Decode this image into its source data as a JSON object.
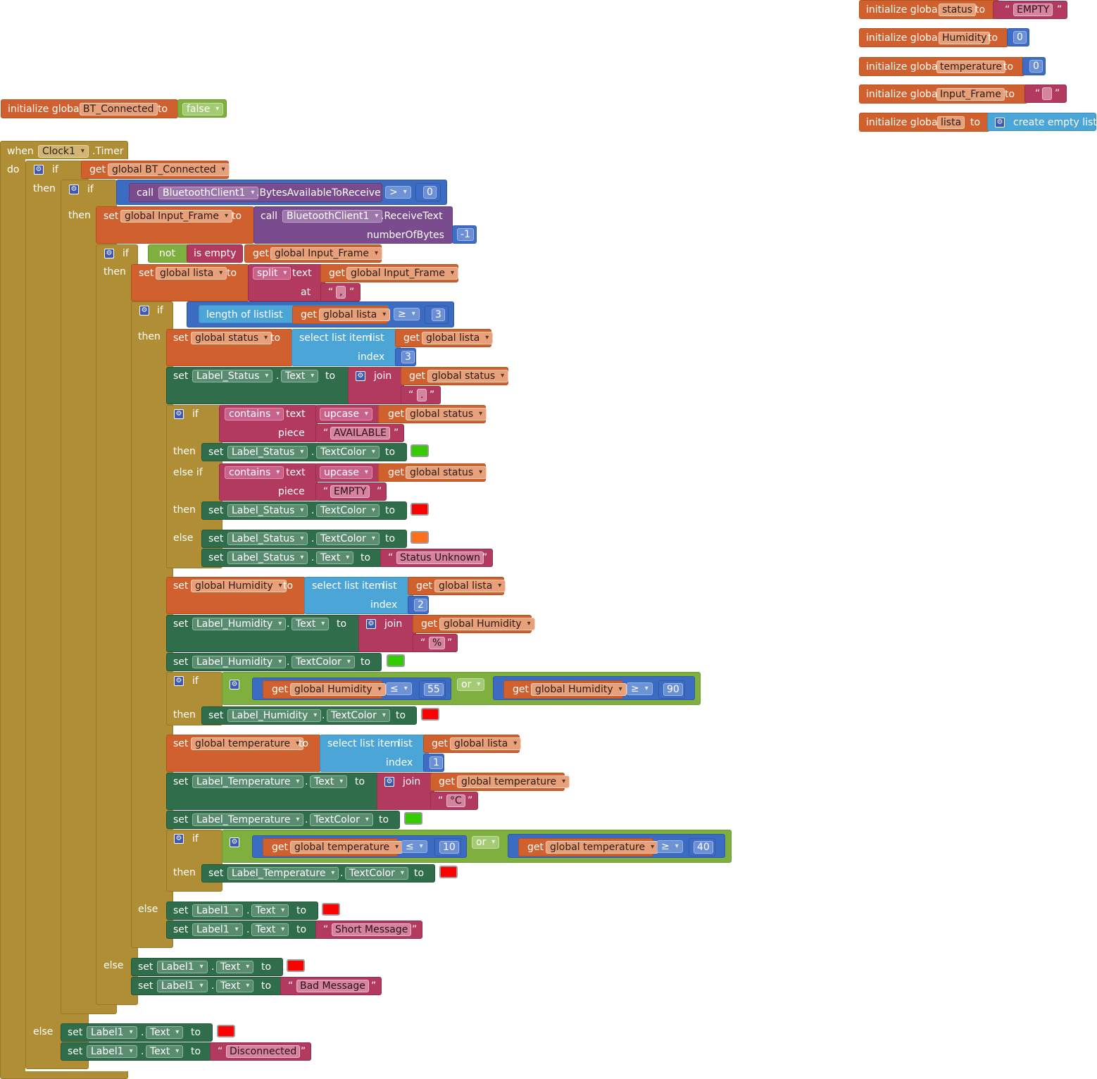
{
  "globals": {
    "initialize_global": "initialize global",
    "to": "to",
    "status": {
      "name": "status",
      "value": "EMPTY"
    },
    "humidity": {
      "name": "Humidity",
      "value": "0"
    },
    "temperature": {
      "name": "temperature",
      "value": "0"
    },
    "input_frame": {
      "name": "Input_Frame",
      "value": ""
    },
    "lista": {
      "name": "lista",
      "value": "create empty list"
    },
    "bt_connected": {
      "name": "BT_Connected",
      "value": "false"
    }
  },
  "kw": {
    "when": "when",
    "do": "do",
    "if": "if",
    "then": "then",
    "else": "else",
    "else_if": "else if",
    "get": "get",
    "set": "set",
    "to": "to",
    "call": "call",
    "not": "not",
    "is_empty": "is empty",
    "split": "split",
    "text": "text",
    "at": "at",
    "length_of_list": "length of list",
    "list": "list",
    "select_list_item": "select list item",
    "index": "index",
    "join": "join",
    "contains": "contains",
    "upcase": "upcase",
    "piece": "piece",
    "or": "or",
    "dot": ".",
    "number_of_bytes": "numberOfBytes",
    "open_quote": "“",
    "close_quote": "”"
  },
  "event": {
    "component": "Clock1",
    "name": ".Timer"
  },
  "vars": {
    "bt": "global BT_Connected",
    "input_frame": "global Input_Frame",
    "lista": "global lista",
    "status": "global status",
    "humidity": "global Humidity",
    "temperature": "global temperature"
  },
  "components": {
    "bt_client": "BluetoothClient1",
    "label_status": "Label_Status",
    "label_humidity": "Label_Humidity",
    "label_temperature": "Label_Temperature",
    "label1": "Label1"
  },
  "methods": {
    "bytes_available": ".BytesAvailableToReceive",
    "receive_text": ".ReceiveText"
  },
  "props": {
    "text": "Text",
    "text_color": "TextColor"
  },
  "ops": {
    "gt": ">",
    "ge": "≥",
    "le": "≤"
  },
  "literals": {
    "zero": "0",
    "minus_one": "-1",
    "comma": ",",
    "three": "3",
    "two": "2",
    "one": "1",
    "dot": ".",
    "available": "AVAILABLE",
    "empty": "EMPTY",
    "status_unknown": "Status Unknown",
    "percent": "%",
    "celsius": "°C",
    "n55": "55",
    "n90": "90",
    "n10": "10",
    "n40": "40",
    "short_message": "Short Message",
    "bad_message": "Bad Message",
    "disconnected": "Disconnected"
  },
  "colors": {
    "green": "#33cc00",
    "red": "#ff0000",
    "orange": "#ff6f1a",
    "control": "#b08e36",
    "variable": "#d0612e",
    "text": "#b13a5e",
    "list": "#4ba5d6",
    "component": "#2f6d4b",
    "logic": "#7eaf3f",
    "math": "#3f6cc5",
    "method_call": "#7a4c8e"
  }
}
